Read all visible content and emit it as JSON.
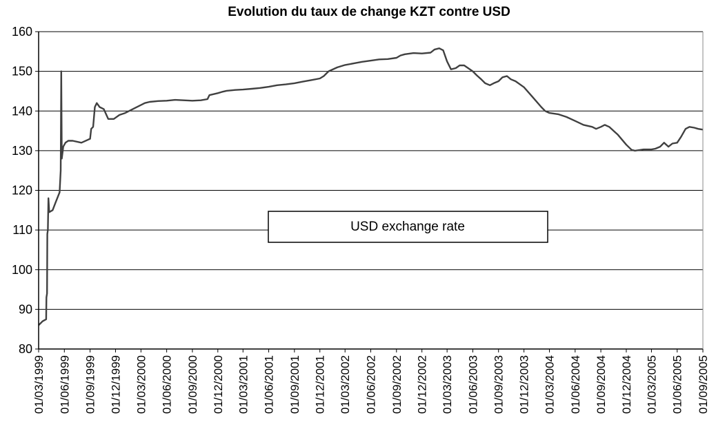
{
  "chart_data": {
    "type": "line",
    "title": "Evolution du taux de change KZT contre USD",
    "xlabel": "",
    "ylabel": "",
    "ylim": [
      80,
      160
    ],
    "yticks": [
      80,
      90,
      100,
      110,
      120,
      130,
      140,
      150,
      160
    ],
    "xlim": [
      "01/03/1999",
      "01/09/2005"
    ],
    "xticks": [
      "01/03/1999",
      "01/06/1999",
      "01/09/1999",
      "01/12/1999",
      "01/03/2000",
      "01/06/2000",
      "01/09/2000",
      "01/12/2000",
      "01/03/2001",
      "01/06/2001",
      "01/09/2001",
      "01/12/2001",
      "01/03/2002",
      "01/06/2002",
      "01/09/2002",
      "01/12/2002",
      "01/03/2003",
      "01/06/2003",
      "01/09/2003",
      "01/12/2003",
      "01/03/2004",
      "01/06/2004",
      "01/09/2004",
      "01/12/2004",
      "01/03/2005",
      "01/06/2005",
      "01/09/2005"
    ],
    "grid": "horizontal",
    "legend_position": "center",
    "series": [
      {
        "name": "USD exchange rate",
        "color": "#404040",
        "points": [
          [
            "01/03/1999",
            86.0
          ],
          [
            "15/03/1999",
            87.0
          ],
          [
            "28/03/1999",
            87.5
          ],
          [
            "29/03/1999",
            93.0
          ],
          [
            "31/03/1999",
            94.0
          ],
          [
            "01/04/1999",
            109.0
          ],
          [
            "03/04/1999",
            110.0
          ],
          [
            "05/04/1999",
            118.0
          ],
          [
            "08/04/1999",
            114.5
          ],
          [
            "20/04/1999",
            115.0
          ],
          [
            "01/05/1999",
            117.0
          ],
          [
            "15/05/1999",
            119.5
          ],
          [
            "19/05/1999",
            125.0
          ],
          [
            "21/05/1999",
            150.0
          ],
          [
            "23/05/1999",
            128.0
          ],
          [
            "28/05/1999",
            131.0
          ],
          [
            "05/06/1999",
            132.0
          ],
          [
            "15/06/1999",
            132.5
          ],
          [
            "01/07/1999",
            132.5
          ],
          [
            "01/08/1999",
            132.0
          ],
          [
            "01/09/1999",
            133.0
          ],
          [
            "05/09/1999",
            135.5
          ],
          [
            "12/09/1999",
            136.0
          ],
          [
            "18/09/1999",
            141.0
          ],
          [
            "25/09/1999",
            142.0
          ],
          [
            "05/10/1999",
            141.0
          ],
          [
            "20/10/1999",
            140.5
          ],
          [
            "05/11/1999",
            138.0
          ],
          [
            "25/11/1999",
            138.0
          ],
          [
            "15/12/1999",
            139.0
          ],
          [
            "05/01/2000",
            139.5
          ],
          [
            "01/02/2000",
            140.5
          ],
          [
            "01/03/2000",
            141.5
          ],
          [
            "15/03/2000",
            142.0
          ],
          [
            "01/04/2000",
            142.3
          ],
          [
            "01/05/2000",
            142.5
          ],
          [
            "01/06/2000",
            142.6
          ],
          [
            "01/07/2000",
            142.8
          ],
          [
            "01/08/2000",
            142.7
          ],
          [
            "01/09/2000",
            142.6
          ],
          [
            "01/10/2000",
            142.7
          ],
          [
            "25/10/2000",
            143.0
          ],
          [
            "01/11/2000",
            144.0
          ],
          [
            "01/12/2000",
            144.5
          ],
          [
            "15/12/2000",
            144.8
          ],
          [
            "01/01/2001",
            145.1
          ],
          [
            "01/02/2001",
            145.3
          ],
          [
            "01/03/2001",
            145.4
          ],
          [
            "01/04/2001",
            145.6
          ],
          [
            "01/05/2001",
            145.8
          ],
          [
            "01/06/2001",
            146.1
          ],
          [
            "01/07/2001",
            146.5
          ],
          [
            "01/08/2001",
            146.7
          ],
          [
            "01/09/2001",
            147.0
          ],
          [
            "01/10/2001",
            147.4
          ],
          [
            "01/11/2001",
            147.8
          ],
          [
            "01/12/2001",
            148.2
          ],
          [
            "15/12/2001",
            148.8
          ],
          [
            "01/01/2002",
            150.0
          ],
          [
            "01/02/2002",
            151.0
          ],
          [
            "01/03/2002",
            151.6
          ],
          [
            "01/04/2002",
            152.0
          ],
          [
            "01/05/2002",
            152.4
          ],
          [
            "01/06/2002",
            152.7
          ],
          [
            "01/07/2002",
            153.0
          ],
          [
            "01/08/2002",
            153.1
          ],
          [
            "01/09/2002",
            153.4
          ],
          [
            "15/09/2002",
            154.0
          ],
          [
            "01/10/2002",
            154.3
          ],
          [
            "01/11/2002",
            154.6
          ],
          [
            "01/12/2002",
            154.5
          ],
          [
            "01/01/2003",
            154.7
          ],
          [
            "15/01/2003",
            155.5
          ],
          [
            "01/02/2003",
            155.8
          ],
          [
            "15/02/2003",
            155.3
          ],
          [
            "01/03/2003",
            152.5
          ],
          [
            "15/03/2003",
            150.5
          ],
          [
            "01/04/2003",
            150.8
          ],
          [
            "15/04/2003",
            151.5
          ],
          [
            "01/05/2003",
            151.5
          ],
          [
            "01/06/2003",
            150.0
          ],
          [
            "15/06/2003",
            149.0
          ],
          [
            "01/07/2003",
            148.0
          ],
          [
            "15/07/2003",
            147.0
          ],
          [
            "01/08/2003",
            146.5
          ],
          [
            "15/08/2003",
            147.0
          ],
          [
            "01/09/2003",
            147.5
          ],
          [
            "15/09/2003",
            148.5
          ],
          [
            "01/10/2003",
            148.8
          ],
          [
            "15/10/2003",
            148.0
          ],
          [
            "01/11/2003",
            147.5
          ],
          [
            "01/12/2003",
            146.0
          ],
          [
            "01/01/2004",
            143.5
          ],
          [
            "01/02/2004",
            141.0
          ],
          [
            "15/02/2004",
            140.0
          ],
          [
            "01/03/2004",
            139.5
          ],
          [
            "01/04/2004",
            139.2
          ],
          [
            "01/05/2004",
            138.5
          ],
          [
            "01/06/2004",
            137.5
          ],
          [
            "01/07/2004",
            136.5
          ],
          [
            "01/08/2004",
            136.0
          ],
          [
            "15/08/2004",
            135.5
          ],
          [
            "01/09/2004",
            136.0
          ],
          [
            "15/09/2004",
            136.5
          ],
          [
            "01/10/2004",
            136.0
          ],
          [
            "01/11/2004",
            134.0
          ],
          [
            "01/12/2004",
            131.5
          ],
          [
            "20/12/2004",
            130.2
          ],
          [
            "01/01/2005",
            130.0
          ],
          [
            "01/02/2005",
            130.3
          ],
          [
            "01/03/2005",
            130.3
          ],
          [
            "15/03/2005",
            130.5
          ],
          [
            "01/04/2005",
            131.0
          ],
          [
            "15/04/2005",
            132.0
          ],
          [
            "01/05/2005",
            131.0
          ],
          [
            "15/05/2005",
            131.8
          ],
          [
            "01/06/2005",
            132.0
          ],
          [
            "15/06/2005",
            133.5
          ],
          [
            "01/07/2005",
            135.5
          ],
          [
            "15/07/2005",
            136.0
          ],
          [
            "01/08/2005",
            135.8
          ],
          [
            "15/08/2005",
            135.5
          ],
          [
            "01/09/2005",
            135.3
          ]
        ]
      }
    ]
  }
}
